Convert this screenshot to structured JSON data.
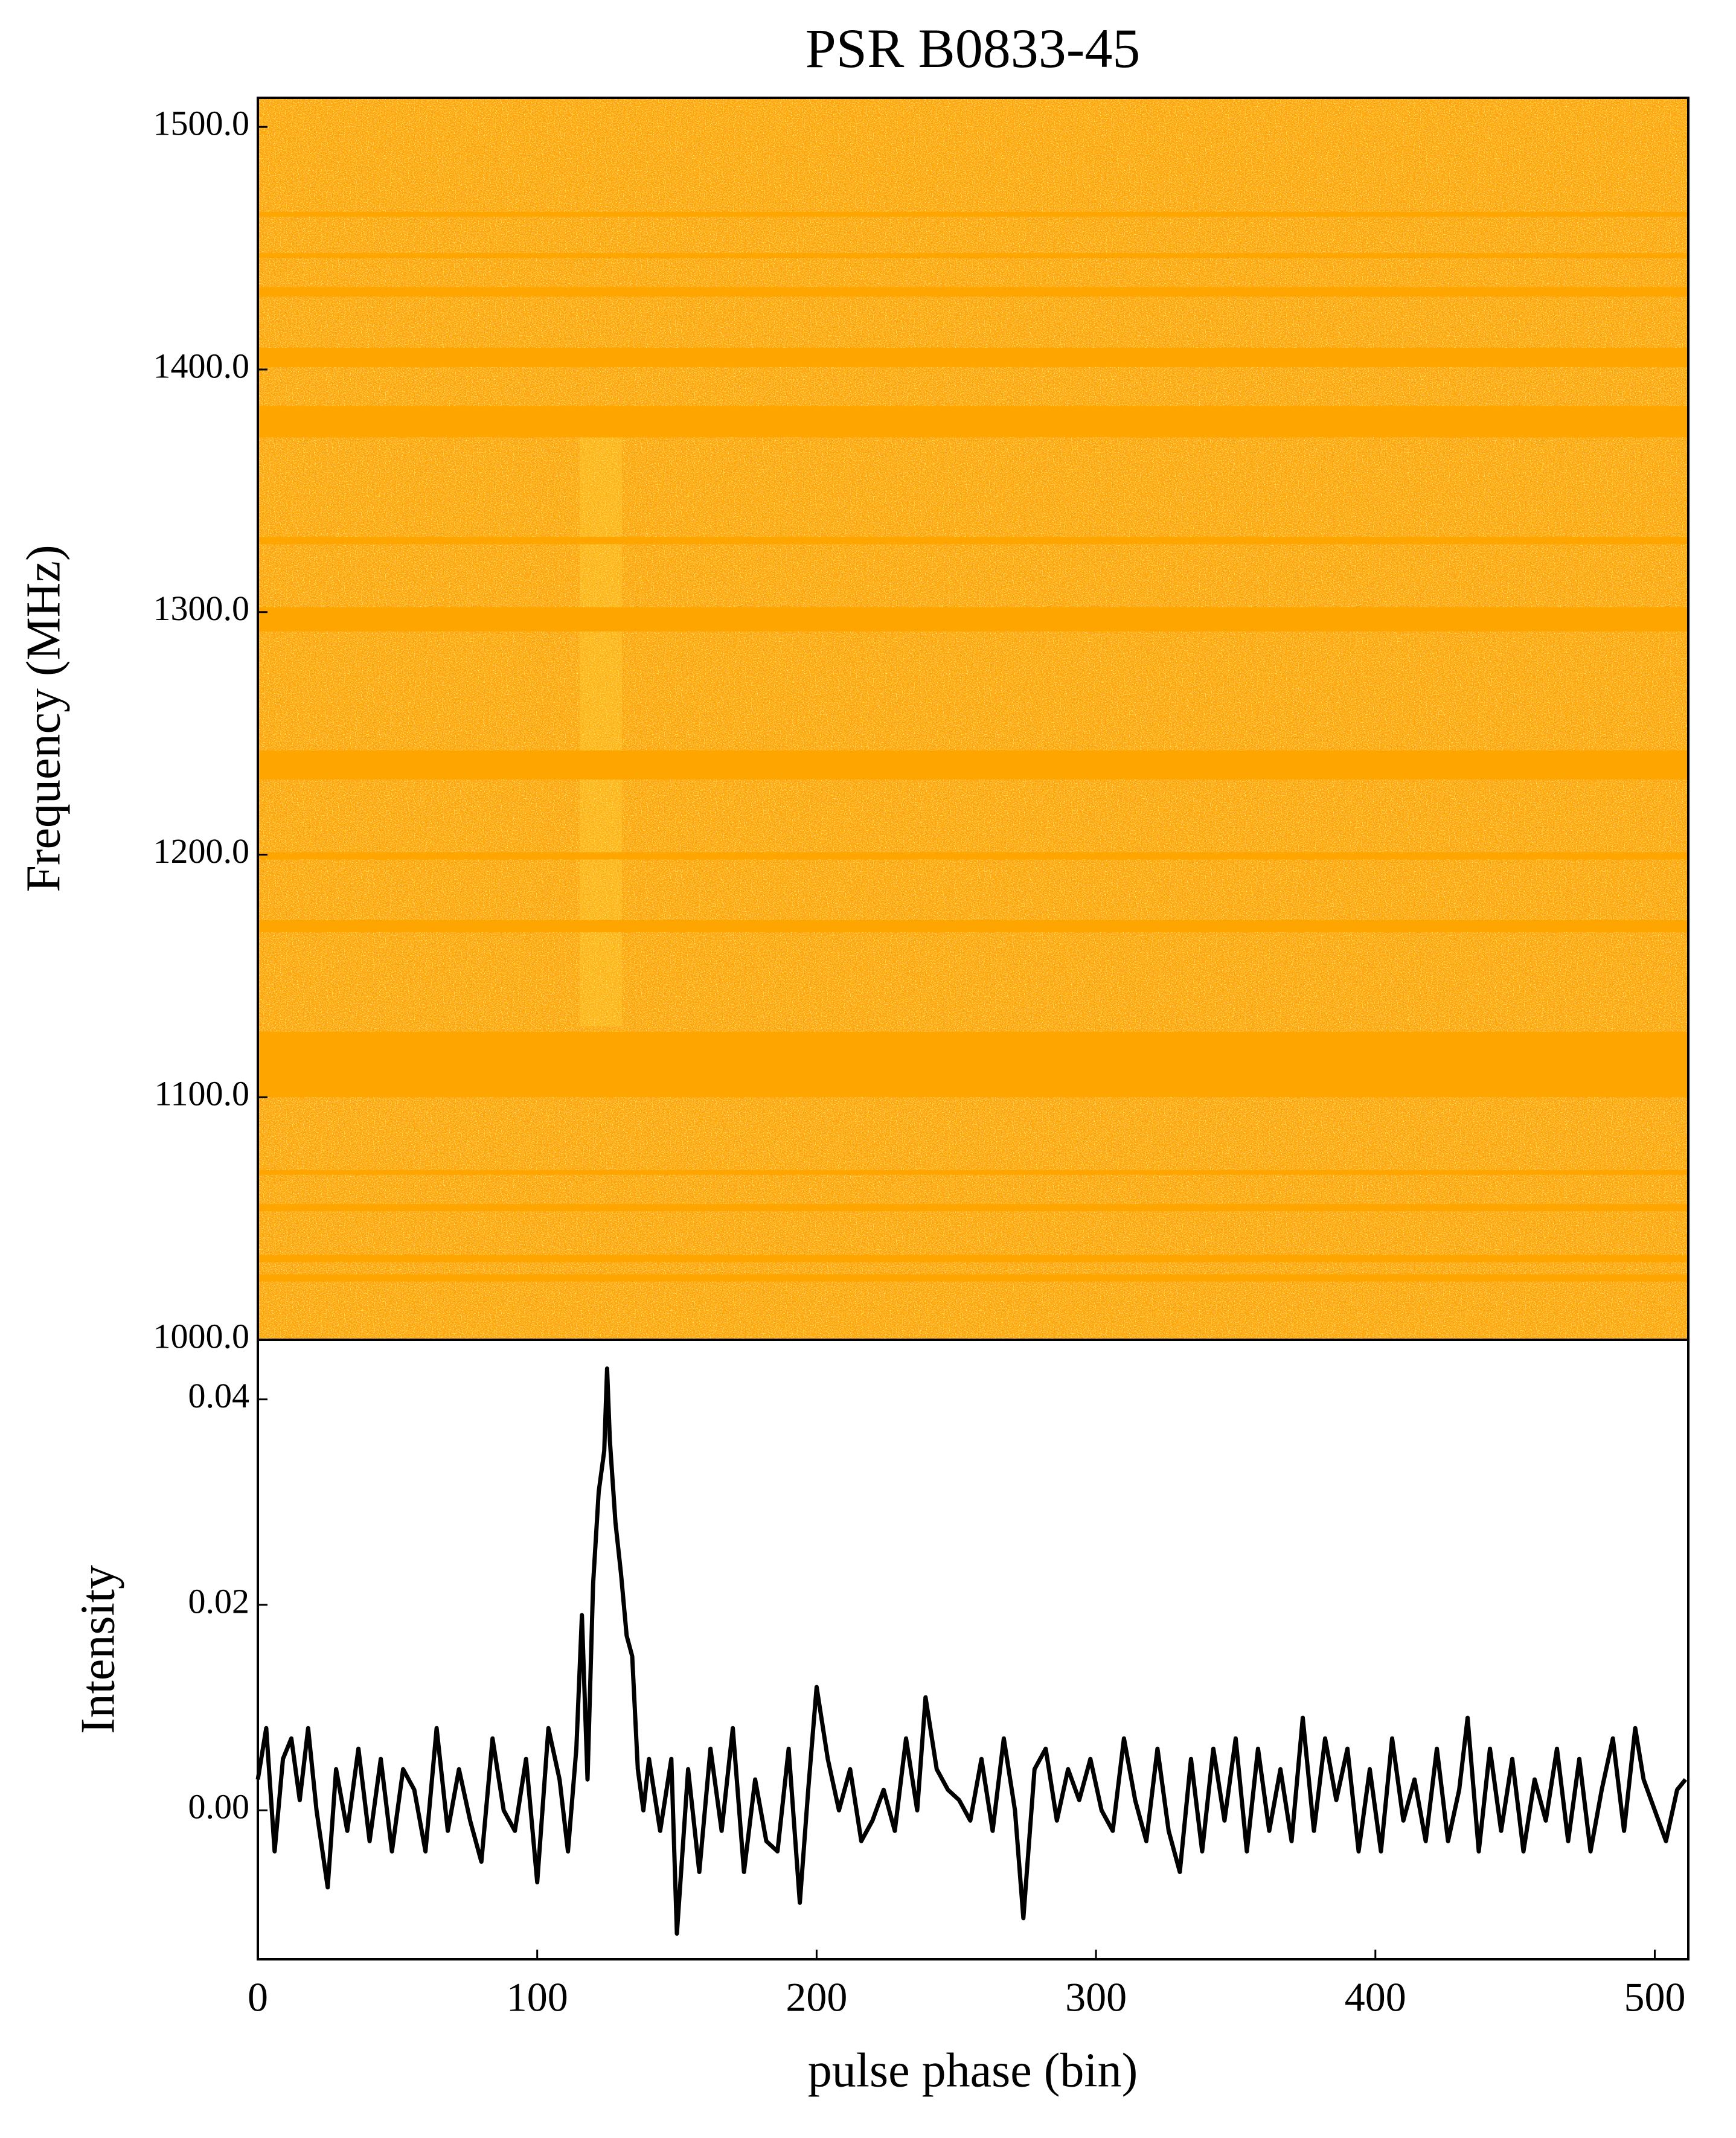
{
  "chart_data": [
    {
      "type": "heatmap",
      "title": "PSR B0833-45",
      "ylabel": "Frequency (MHz)",
      "xlim": [
        0,
        512
      ],
      "ylim": [
        1000,
        1512
      ],
      "yticks": [
        {
          "value": 1000,
          "label": "1000.0"
        },
        {
          "value": 1100,
          "label": "1100.0"
        },
        {
          "value": 1200,
          "label": "1200.0"
        },
        {
          "value": 1300,
          "label": "1300.0"
        },
        {
          "value": 1400,
          "label": "1400.0"
        },
        {
          "value": 1500,
          "label": "1500.0"
        }
      ],
      "color": "#ffa500",
      "masked_bands": [
        [
          1463,
          1465
        ],
        [
          1446,
          1448
        ],
        [
          1430,
          1434
        ],
        [
          1401,
          1409
        ],
        [
          1372,
          1385
        ],
        [
          1328,
          1331
        ],
        [
          1292,
          1302
        ],
        [
          1231,
          1243
        ],
        [
          1198,
          1201
        ],
        [
          1168,
          1173
        ],
        [
          1100,
          1127
        ],
        [
          1068,
          1070
        ],
        [
          1053,
          1056
        ],
        [
          1032,
          1035
        ],
        [
          1024,
          1027
        ]
      ]
    },
    {
      "type": "line",
      "xlabel": "pulse phase (bin)",
      "ylabel": "Intensity",
      "color": "#000000",
      "xlim": [
        0,
        512
      ],
      "ylim": [
        -0.0145,
        0.0458
      ],
      "xticks": [
        0,
        100,
        200,
        300,
        400,
        500
      ],
      "yticks": [
        {
          "value": 0,
          "label": "0.00"
        },
        {
          "value": 0.02,
          "label": "0.02"
        },
        0.04
      ],
      "x": [
        0,
        3,
        6,
        9,
        12,
        15,
        18,
        21,
        25,
        28,
        32,
        36,
        40,
        44,
        48,
        52,
        56,
        60,
        64,
        68,
        72,
        76,
        80,
        84,
        88,
        92,
        96,
        100,
        104,
        108,
        111,
        114,
        116,
        118,
        120,
        122,
        124,
        125,
        126,
        128,
        130,
        132,
        134,
        136,
        138,
        140,
        144,
        148,
        150,
        154,
        158,
        162,
        166,
        170,
        174,
        178,
        182,
        186,
        190,
        194,
        197,
        200,
        204,
        208,
        212,
        216,
        220,
        224,
        228,
        232,
        236,
        239,
        243,
        247,
        251,
        255,
        259,
        263,
        267,
        271,
        274,
        278,
        282,
        286,
        290,
        294,
        298,
        302,
        306,
        310,
        314,
        318,
        322,
        326,
        330,
        334,
        338,
        342,
        346,
        350,
        354,
        358,
        362,
        366,
        370,
        374,
        378,
        382,
        386,
        390,
        394,
        398,
        402,
        406,
        410,
        414,
        418,
        422,
        426,
        430,
        433,
        437,
        441,
        445,
        449,
        453,
        457,
        461,
        465,
        469,
        473,
        477,
        481,
        485,
        489,
        493,
        496,
        500,
        504,
        508,
        511
      ],
      "values": [
        0.003,
        0.008,
        -0.004,
        0.005,
        0.007,
        0.001,
        0.008,
        0.0,
        -0.0075,
        0.004,
        -0.002,
        0.006,
        -0.003,
        0.005,
        -0.004,
        0.004,
        0.002,
        -0.004,
        0.008,
        -0.002,
        0.004,
        -0.001,
        -0.005,
        0.007,
        0.0,
        -0.002,
        0.005,
        -0.007,
        0.008,
        0.003,
        -0.004,
        0.006,
        0.019,
        0.003,
        0.022,
        0.031,
        0.035,
        0.043,
        0.036,
        0.028,
        0.023,
        0.017,
        0.015,
        0.004,
        0.0,
        0.005,
        -0.002,
        0.005,
        -0.012,
        0.004,
        -0.006,
        0.006,
        -0.002,
        0.008,
        -0.006,
        0.003,
        -0.003,
        -0.004,
        0.006,
        -0.009,
        0.002,
        0.012,
        0.005,
        0.0,
        0.004,
        -0.003,
        -0.001,
        0.002,
        -0.002,
        0.007,
        0.0,
        0.011,
        0.004,
        0.002,
        0.001,
        -0.001,
        0.005,
        -0.002,
        0.007,
        0.0,
        -0.0105,
        0.004,
        0.006,
        -0.001,
        0.004,
        0.001,
        0.005,
        0.0,
        -0.002,
        0.007,
        0.001,
        -0.003,
        0.006,
        -0.002,
        -0.006,
        0.005,
        -0.004,
        0.006,
        -0.001,
        0.007,
        -0.004,
        0.006,
        -0.002,
        0.004,
        -0.003,
        0.009,
        -0.002,
        0.007,
        0.001,
        0.006,
        -0.004,
        0.004,
        -0.004,
        0.007,
        -0.001,
        0.003,
        -0.003,
        0.006,
        -0.003,
        0.002,
        0.009,
        -0.004,
        0.006,
        -0.002,
        0.005,
        -0.004,
        0.003,
        -0.001,
        0.006,
        -0.003,
        0.005,
        -0.004,
        0.002,
        0.007,
        -0.002,
        0.008,
        0.003,
        0.0,
        -0.003,
        0.002,
        0.003
      ]
    }
  ]
}
